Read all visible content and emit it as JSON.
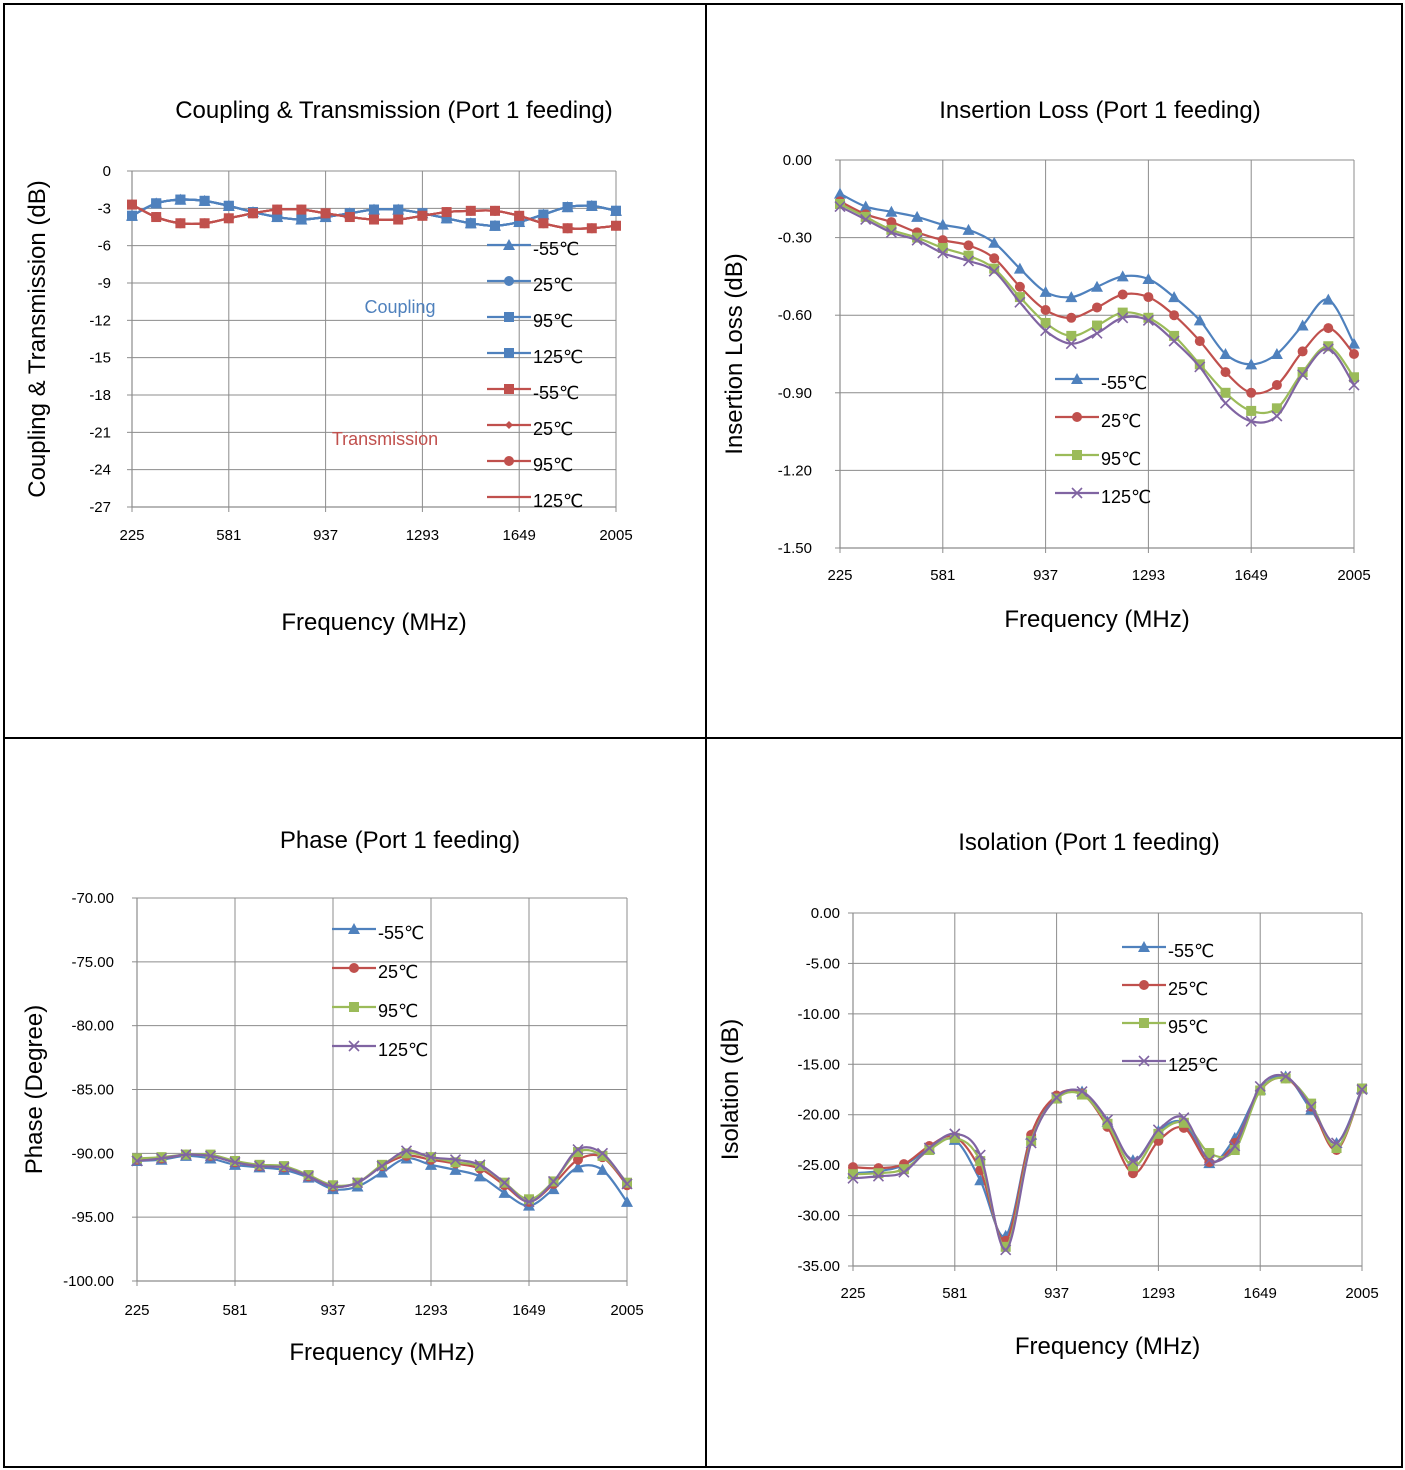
{
  "chart_data": [
    {
      "type": "line",
      "title": "Coupling & Transmission (Port 1 feeding)",
      "xlabel": "Frequency (MHz)",
      "ylabel": "Coupling & Transmission (dB)",
      "ylim": [
        -27,
        0
      ],
      "yticks": [
        "0",
        "-3",
        "-6",
        "-9",
        "-12",
        "-15",
        "-18",
        "-21",
        "-24",
        "-27"
      ],
      "xticks": [
        "225",
        "581",
        "937",
        "1293",
        "1649",
        "2005"
      ],
      "grid": true,
      "legend_position": "right",
      "annotations": [
        {
          "text": "Coupling",
          "color": "#4F81BD"
        },
        {
          "text": "Transmission",
          "color": "#C0504D"
        }
      ],
      "x": [
        225,
        314,
        403,
        492,
        581,
        670,
        759,
        848,
        937,
        1026,
        1115,
        1204,
        1293,
        1382,
        1471,
        1560,
        1649,
        1738,
        1827,
        1916,
        2005
      ],
      "series": [
        {
          "name": "-55℃",
          "color": "#4F81BD",
          "marker": "triangle",
          "values": [
            -3.6,
            -2.6,
            -2.3,
            -2.4,
            -2.8,
            -3.3,
            -3.7,
            -3.9,
            -3.7,
            -3.4,
            -3.1,
            -3.1,
            -3.4,
            -3.8,
            -4.2,
            -4.4,
            -4.1,
            -3.5,
            -2.9,
            -2.8,
            -3.2
          ]
        },
        {
          "name": "25℃",
          "color": "#4F81BD",
          "marker": "circle",
          "values": [
            -3.6,
            -2.6,
            -2.3,
            -2.4,
            -2.8,
            -3.3,
            -3.7,
            -3.9,
            -3.7,
            -3.4,
            -3.1,
            -3.1,
            -3.4,
            -3.8,
            -4.2,
            -4.4,
            -4.1,
            -3.5,
            -2.9,
            -2.8,
            -3.2
          ]
        },
        {
          "name": "95℃",
          "color": "#4F81BD",
          "marker": "square",
          "values": [
            -3.6,
            -2.6,
            -2.3,
            -2.4,
            -2.8,
            -3.3,
            -3.7,
            -3.9,
            -3.7,
            -3.4,
            -3.1,
            -3.1,
            -3.4,
            -3.8,
            -4.2,
            -4.4,
            -4.1,
            -3.5,
            -2.9,
            -2.8,
            -3.2
          ]
        },
        {
          "name": "125℃",
          "color": "#4F81BD",
          "marker": "square",
          "values": [
            -3.6,
            -2.6,
            -2.3,
            -2.4,
            -2.8,
            -3.3,
            -3.7,
            -3.9,
            -3.7,
            -3.4,
            -3.1,
            -3.1,
            -3.4,
            -3.8,
            -4.2,
            -4.4,
            -4.1,
            -3.5,
            -2.9,
            -2.8,
            -3.2
          ]
        },
        {
          "name": "-55℃",
          "color": "#C0504D",
          "marker": "square",
          "values": [
            -2.7,
            -3.7,
            -4.2,
            -4.2,
            -3.8,
            -3.4,
            -3.1,
            -3.1,
            -3.4,
            -3.7,
            -3.9,
            -3.9,
            -3.6,
            -3.3,
            -3.2,
            -3.2,
            -3.6,
            -4.2,
            -4.6,
            -4.6,
            -4.4
          ]
        },
        {
          "name": "25℃",
          "color": "#C0504D",
          "marker": "diamond",
          "values": [
            -2.7,
            -3.7,
            -4.2,
            -4.2,
            -3.8,
            -3.4,
            -3.1,
            -3.1,
            -3.4,
            -3.7,
            -3.9,
            -3.9,
            -3.6,
            -3.3,
            -3.2,
            -3.2,
            -3.6,
            -4.2,
            -4.6,
            -4.6,
            -4.4
          ]
        },
        {
          "name": "95℃",
          "color": "#C0504D",
          "marker": "circle",
          "values": [
            -2.7,
            -3.7,
            -4.2,
            -4.2,
            -3.8,
            -3.4,
            -3.1,
            -3.1,
            -3.4,
            -3.7,
            -3.9,
            -3.9,
            -3.6,
            -3.3,
            -3.2,
            -3.2,
            -3.6,
            -4.2,
            -4.6,
            -4.6,
            -4.4
          ]
        },
        {
          "name": "125℃",
          "color": "#C0504D",
          "marker": "dash",
          "values": [
            -2.7,
            -3.7,
            -4.2,
            -4.2,
            -3.8,
            -3.4,
            -3.1,
            -3.1,
            -3.4,
            -3.7,
            -3.9,
            -3.9,
            -3.6,
            -3.3,
            -3.2,
            -3.2,
            -3.6,
            -4.2,
            -4.6,
            -4.6,
            -4.4
          ]
        }
      ]
    },
    {
      "type": "line",
      "title": "Insertion Loss (Port 1 feeding)",
      "xlabel": "Frequency (MHz)",
      "ylabel": "Insertion Loss (dB)",
      "ylim": [
        -1.5,
        0
      ],
      "yticks": [
        "0.00",
        "-0.30",
        "-0.60",
        "-0.90",
        "-1.20",
        "-1.50"
      ],
      "xticks": [
        "225",
        "581",
        "937",
        "1293",
        "1649",
        "2005"
      ],
      "grid": true,
      "legend_position": "center",
      "x": [
        225,
        314,
        403,
        492,
        581,
        670,
        759,
        848,
        937,
        1026,
        1115,
        1204,
        1293,
        1382,
        1471,
        1560,
        1649,
        1738,
        1827,
        1916,
        2005
      ],
      "series": [
        {
          "name": "-55℃",
          "color": "#4F81BD",
          "marker": "triangle",
          "values": [
            -0.13,
            -0.18,
            -0.2,
            -0.22,
            -0.25,
            -0.27,
            -0.32,
            -0.42,
            -0.51,
            -0.53,
            -0.49,
            -0.45,
            -0.46,
            -0.53,
            -0.62,
            -0.75,
            -0.79,
            -0.75,
            -0.64,
            -0.54,
            -0.71
          ]
        },
        {
          "name": "25℃",
          "color": "#C0504D",
          "marker": "circle",
          "values": [
            -0.16,
            -0.21,
            -0.24,
            -0.28,
            -0.31,
            -0.33,
            -0.38,
            -0.49,
            -0.58,
            -0.61,
            -0.57,
            -0.52,
            -0.53,
            -0.6,
            -0.7,
            -0.82,
            -0.9,
            -0.87,
            -0.74,
            -0.65,
            -0.75
          ]
        },
        {
          "name": "95℃",
          "color": "#9BBB59",
          "marker": "square",
          "values": [
            -0.17,
            -0.22,
            -0.27,
            -0.3,
            -0.34,
            -0.37,
            -0.42,
            -0.53,
            -0.63,
            -0.68,
            -0.64,
            -0.59,
            -0.61,
            -0.68,
            -0.79,
            -0.9,
            -0.97,
            -0.96,
            -0.82,
            -0.72,
            -0.84
          ]
        },
        {
          "name": "125℃",
          "color": "#8064A2",
          "marker": "x",
          "values": [
            -0.18,
            -0.23,
            -0.28,
            -0.31,
            -0.36,
            -0.39,
            -0.43,
            -0.55,
            -0.66,
            -0.71,
            -0.67,
            -0.61,
            -0.62,
            -0.7,
            -0.8,
            -0.94,
            -1.01,
            -0.99,
            -0.83,
            -0.73,
            -0.87
          ]
        }
      ]
    },
    {
      "type": "line",
      "title": "Phase (Port 1 feeding)",
      "xlabel": "Frequency (MHz)",
      "ylabel": "Phase (Degree)",
      "ylim": [
        -100,
        -70
      ],
      "yticks": [
        "-70.00",
        "-75.00",
        "-80.00",
        "-85.00",
        "-90.00",
        "-95.00",
        "-100.00"
      ],
      "xticks": [
        "225",
        "581",
        "937",
        "1293",
        "1649",
        "2005"
      ],
      "grid": true,
      "legend_position": "top-center",
      "x": [
        225,
        314,
        403,
        492,
        581,
        670,
        759,
        848,
        937,
        1026,
        1115,
        1204,
        1293,
        1382,
        1471,
        1560,
        1649,
        1738,
        1827,
        1916,
        2005
      ],
      "series": [
        {
          "name": "-55℃",
          "color": "#4F81BD",
          "marker": "triangle",
          "values": [
            -90.6,
            -90.5,
            -90.2,
            -90.4,
            -90.9,
            -91.1,
            -91.3,
            -91.9,
            -92.8,
            -92.6,
            -91.5,
            -90.4,
            -90.9,
            -91.3,
            -91.8,
            -93.1,
            -94.1,
            -92.8,
            -91.1,
            -91.3,
            -93.8
          ]
        },
        {
          "name": "25℃",
          "color": "#C0504D",
          "marker": "circle",
          "values": [
            -90.5,
            -90.4,
            -90.1,
            -90.2,
            -90.7,
            -91.0,
            -91.1,
            -91.8,
            -92.6,
            -92.3,
            -91.0,
            -90.2,
            -90.5,
            -90.8,
            -91.2,
            -92.5,
            -93.8,
            -92.4,
            -90.5,
            -90.3,
            -92.5
          ]
        },
        {
          "name": "95℃",
          "color": "#9BBB59",
          "marker": "square",
          "values": [
            -90.4,
            -90.3,
            -90.1,
            -90.1,
            -90.6,
            -90.9,
            -91.0,
            -91.7,
            -92.5,
            -92.3,
            -90.9,
            -90.0,
            -90.3,
            -90.7,
            -91.0,
            -92.3,
            -93.6,
            -92.2,
            -89.9,
            -90.2,
            -92.3
          ]
        },
        {
          "name": "125℃",
          "color": "#8064A2",
          "marker": "x",
          "values": [
            -90.6,
            -90.4,
            -90.1,
            -90.2,
            -90.7,
            -91.0,
            -91.1,
            -91.8,
            -92.6,
            -92.3,
            -91.0,
            -89.8,
            -90.3,
            -90.5,
            -90.9,
            -92.3,
            -93.8,
            -92.2,
            -89.7,
            -90.0,
            -92.4
          ]
        }
      ]
    },
    {
      "type": "line",
      "title": "Isolation (Port 1 feeding)",
      "xlabel": "Frequency (MHz)",
      "ylabel": "Isolation (dB)",
      "ylim": [
        -35,
        0
      ],
      "yticks": [
        "0.00",
        "-5.00",
        "-10.00",
        "-15.00",
        "-20.00",
        "-25.00",
        "-30.00",
        "-35.00"
      ],
      "xticks": [
        "225",
        "581",
        "937",
        "1293",
        "1649",
        "2005"
      ],
      "grid": true,
      "legend_position": "top-right",
      "x": [
        225,
        314,
        403,
        492,
        581,
        670,
        759,
        848,
        937,
        1026,
        1115,
        1204,
        1293,
        1382,
        1471,
        1560,
        1649,
        1738,
        1827,
        1916,
        2005
      ],
      "series": [
        {
          "name": "-55℃",
          "color": "#4F81BD",
          "marker": "triangle",
          "values": [
            -25.8,
            -25.6,
            -25.0,
            -23.4,
            -22.5,
            -26.5,
            -32.0,
            -22.0,
            -18.3,
            -17.7,
            -20.7,
            -24.5,
            -21.6,
            -20.8,
            -24.8,
            -22.3,
            -17.5,
            -16.2,
            -19.5,
            -22.8,
            -17.4
          ]
        },
        {
          "name": "25℃",
          "color": "#C0504D",
          "marker": "circle",
          "values": [
            -25.2,
            -25.3,
            -24.9,
            -23.1,
            -22.2,
            -25.5,
            -32.5,
            -22.0,
            -18.1,
            -17.9,
            -21.2,
            -25.8,
            -22.6,
            -21.3,
            -24.7,
            -22.8,
            -17.6,
            -16.4,
            -19.2,
            -23.5,
            -17.4
          ]
        },
        {
          "name": "95℃",
          "color": "#9BBB59",
          "marker": "square",
          "values": [
            -25.9,
            -25.8,
            -25.4,
            -23.5,
            -22.3,
            -24.6,
            -33.1,
            -22.6,
            -18.4,
            -18.0,
            -20.9,
            -25.1,
            -21.9,
            -20.8,
            -23.8,
            -23.5,
            -17.6,
            -16.4,
            -18.9,
            -23.3,
            -17.4
          ]
        },
        {
          "name": "125℃",
          "color": "#8064A2",
          "marker": "x",
          "values": [
            -26.3,
            -26.1,
            -25.7,
            -23.3,
            -21.9,
            -24.0,
            -33.4,
            -22.8,
            -18.3,
            -17.7,
            -20.5,
            -24.6,
            -21.5,
            -20.3,
            -24.5,
            -23.1,
            -17.2,
            -16.2,
            -19.2,
            -22.8,
            -17.5
          ]
        }
      ]
    }
  ]
}
